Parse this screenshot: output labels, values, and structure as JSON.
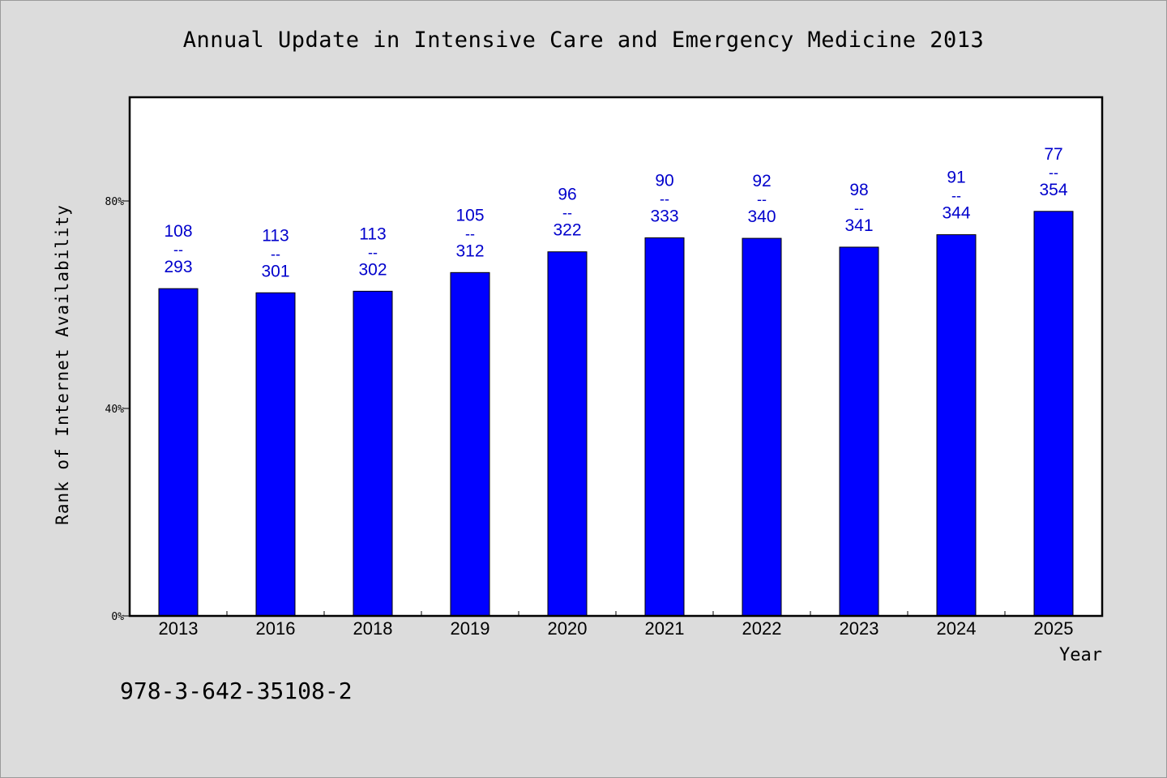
{
  "chart_data": {
    "type": "bar",
    "title": "Annual Update in Intensive Care and Emergency Medicine 2013",
    "xlabel": "Year",
    "ylabel": "Rank of Internet Availability",
    "ylim": [
      0,
      100
    ],
    "yticks": [
      {
        "value": 0,
        "label": "0%"
      },
      {
        "value": 40,
        "label": "40%"
      },
      {
        "value": 80,
        "label": "80%"
      }
    ],
    "categories": [
      "2013",
      "2016",
      "2018",
      "2019",
      "2020",
      "2021",
      "2022",
      "2023",
      "2024",
      "2025"
    ],
    "values": [
      63.1,
      62.3,
      62.6,
      66.2,
      70.2,
      72.9,
      72.8,
      71.1,
      73.5,
      78.0
    ],
    "data_labels": [
      {
        "top": "108",
        "sep": "--",
        "bottom": "293"
      },
      {
        "top": "113",
        "sep": "--",
        "bottom": "301"
      },
      {
        "top": "113",
        "sep": "--",
        "bottom": "302"
      },
      {
        "top": "105",
        "sep": "--",
        "bottom": "312"
      },
      {
        "top": "96",
        "sep": "--",
        "bottom": "322"
      },
      {
        "top": "90",
        "sep": "--",
        "bottom": "333"
      },
      {
        "top": "92",
        "sep": "--",
        "bottom": "340"
      },
      {
        "top": "98",
        "sep": "--",
        "bottom": "341"
      },
      {
        "top": "91",
        "sep": "--",
        "bottom": "344"
      },
      {
        "top": "77",
        "sep": "--",
        "bottom": "354"
      }
    ],
    "grid": false,
    "bar_color": "#0000ff",
    "label_color": "#0000cc"
  },
  "footnote": "978-3-642-35108-2"
}
